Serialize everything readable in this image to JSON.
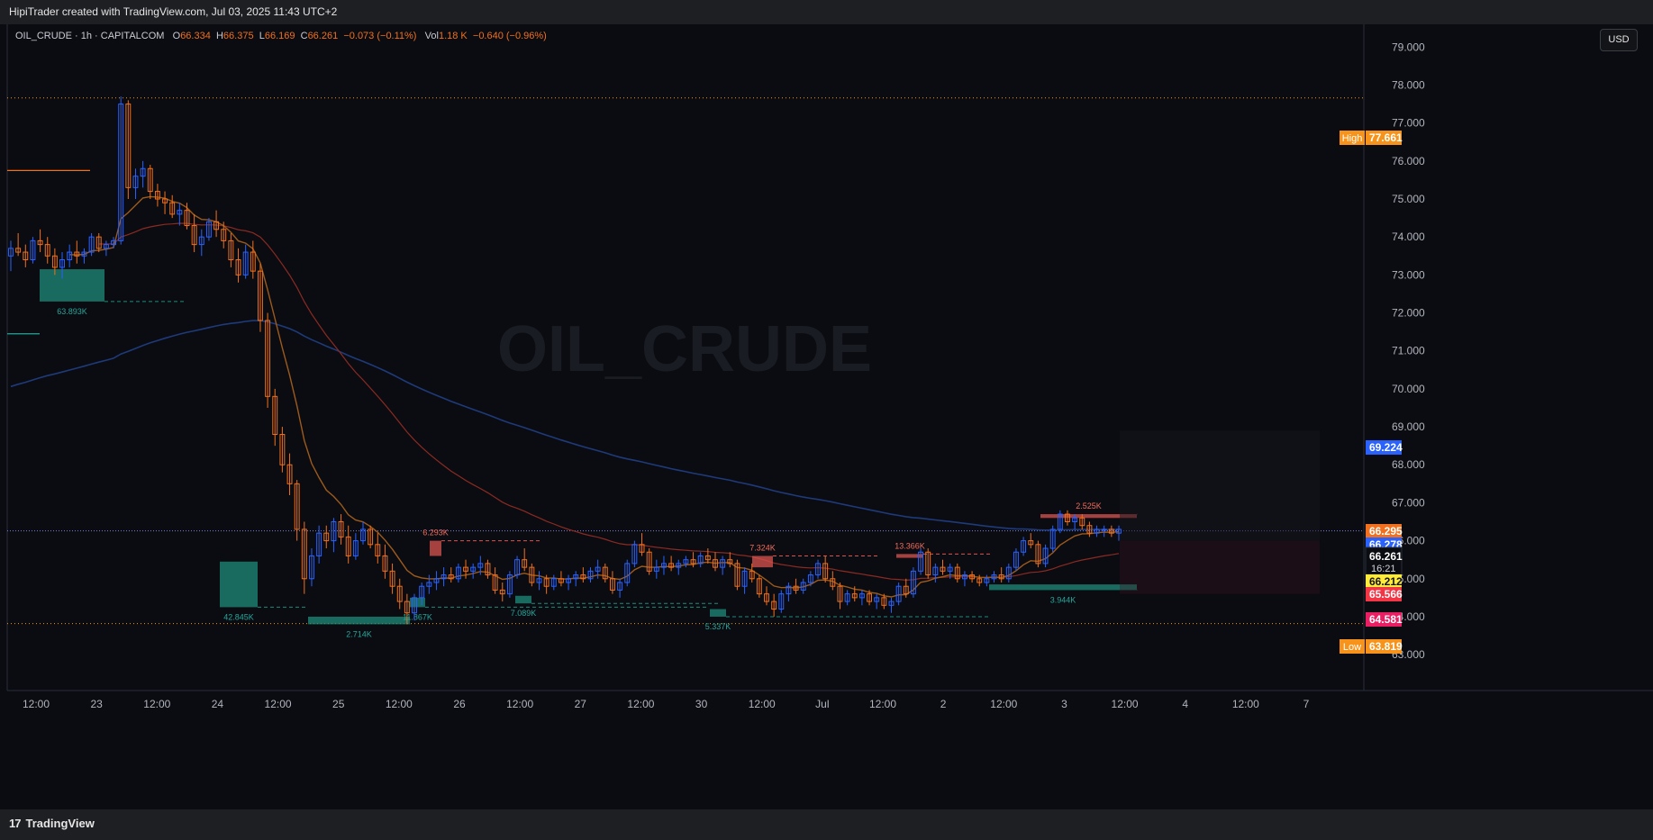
{
  "header": {
    "title": "HipiTrader created with TradingView.com, Jul 03, 2025 11:43 UTC+2"
  },
  "legend": {
    "symbol": "OIL_CRUDE · 1h · CAPITALCOM",
    "open_label": "O",
    "open": "66.334",
    "high_label": "H",
    "high": "66.375",
    "low_label": "L",
    "low": "66.169",
    "close_label": "C",
    "close": "66.261",
    "change": "−0.073 (−0.11%)",
    "vol_label": "Vol",
    "vol": "1.18 K",
    "vol_change": "−0.640 (−0.96%)"
  },
  "watermark": "OIL_CRUDE",
  "currency_button": "USD",
  "footer": {
    "brand": "TradingView",
    "logo_text": "17"
  },
  "colors": {
    "bull": "#2962ff",
    "bear": "#f0701e",
    "ema_fast": "#9c5a1c",
    "ema_mid": "#8b2a22",
    "ema_slow": "#1e3a7a",
    "demand": "#1f8a7a",
    "supply": "#d9534f",
    "high_low": "#f7931a"
  },
  "chart_data": {
    "type": "candlestick",
    "ylim": [
      62.6,
      79.6
    ],
    "y_ticks": [
      "79.000",
      "78.000",
      "77.000",
      "76.000",
      "75.000",
      "74.000",
      "73.000",
      "72.000",
      "71.000",
      "70.000",
      "69.000",
      "68.000",
      "67.000",
      "66.000",
      "65.000",
      "64.000",
      "63.000"
    ],
    "x_ticks": [
      "12:00",
      "23",
      "12:00",
      "24",
      "12:00",
      "25",
      "12:00",
      "26",
      "12:00",
      "27",
      "12:00",
      "30",
      "12:00",
      "Jul",
      "12:00",
      "2",
      "12:00",
      "3",
      "12:00",
      "4",
      "12:00",
      "7"
    ],
    "price_labels": [
      {
        "label": "High",
        "value": "77.661",
        "color": "#f7931a"
      },
      {
        "label": "",
        "value": "69.224",
        "color": "#2962ff"
      },
      {
        "label": "",
        "value": "66.295",
        "color": "#f0701e"
      },
      {
        "label": "",
        "value": "66.278",
        "color": "#2962ff"
      },
      {
        "label": "",
        "value": "66.261",
        "sub": "16:21",
        "color": "#0b0c11"
      },
      {
        "label": "",
        "value": "66.212",
        "color": "#ffeb3b"
      },
      {
        "label": "",
        "value": "65.566",
        "color": "#f23645"
      },
      {
        "label": "",
        "value": "64.581",
        "color": "#e91e63"
      },
      {
        "label": "Low",
        "value": "63.819",
        "color": "#f7931a"
      }
    ],
    "zones": [
      {
        "type": "demand",
        "label": "63.893K",
        "top": 73.15,
        "bottom": 72.3
      },
      {
        "type": "demand",
        "label": "42.845K",
        "top": 65.45,
        "bottom": 64.25
      },
      {
        "type": "demand",
        "label": "2.714K",
        "top": 64.0,
        "bottom": 63.8
      },
      {
        "type": "demand",
        "label": "11.867K",
        "top": 64.5,
        "bottom": 64.25
      },
      {
        "type": "demand",
        "label": "7.089K",
        "top": 64.55,
        "bottom": 64.35
      },
      {
        "type": "demand",
        "label": "5.337K",
        "top": 64.2,
        "bottom": 64.0
      },
      {
        "type": "demand",
        "label": "3.944K",
        "top": 64.85,
        "bottom": 64.7
      },
      {
        "type": "supply",
        "label": "6.293K",
        "top": 66.0,
        "bottom": 65.6
      },
      {
        "type": "supply",
        "label": "7.324K",
        "top": 65.6,
        "bottom": 65.3
      },
      {
        "type": "supply",
        "label": "13.366K",
        "top": 65.65,
        "bottom": 65.55
      },
      {
        "type": "supply",
        "label": "2.525K",
        "top": 66.7,
        "bottom": 66.6
      }
    ],
    "candles": [
      [
        73.5,
        73.9,
        73.1,
        73.7
      ],
      [
        73.7,
        74.1,
        73.5,
        73.6
      ],
      [
        73.6,
        73.8,
        73.2,
        73.4
      ],
      [
        73.4,
        74.0,
        73.3,
        73.9
      ],
      [
        73.9,
        74.2,
        73.6,
        73.8
      ],
      [
        73.8,
        74.0,
        73.3,
        73.5
      ],
      [
        73.5,
        73.7,
        73.0,
        73.2
      ],
      [
        73.2,
        73.6,
        72.9,
        73.4
      ],
      [
        73.4,
        73.8,
        73.2,
        73.6
      ],
      [
        73.6,
        73.9,
        73.3,
        73.5
      ],
      [
        73.5,
        73.7,
        73.3,
        73.6
      ],
      [
        73.6,
        74.1,
        73.5,
        74.0
      ],
      [
        74.0,
        74.1,
        73.6,
        73.7
      ],
      [
        73.7,
        73.9,
        73.5,
        73.8
      ],
      [
        73.8,
        74.0,
        73.7,
        73.9
      ],
      [
        73.9,
        77.7,
        73.8,
        77.5
      ],
      [
        77.5,
        77.6,
        75.0,
        75.3
      ],
      [
        75.3,
        75.8,
        75.0,
        75.6
      ],
      [
        75.6,
        76.0,
        75.3,
        75.8
      ],
      [
        75.8,
        75.9,
        75.0,
        75.2
      ],
      [
        75.2,
        75.4,
        74.8,
        75.0
      ],
      [
        75.0,
        75.2,
        74.6,
        74.9
      ],
      [
        74.9,
        75.1,
        74.5,
        74.6
      ],
      [
        74.6,
        74.9,
        74.3,
        74.7
      ],
      [
        74.7,
        74.9,
        74.2,
        74.3
      ],
      [
        74.3,
        74.6,
        73.6,
        73.8
      ],
      [
        73.8,
        74.2,
        73.5,
        74.0
      ],
      [
        74.0,
        74.5,
        73.9,
        74.4
      ],
      [
        74.4,
        74.7,
        74.0,
        74.2
      ],
      [
        74.2,
        74.4,
        73.7,
        73.9
      ],
      [
        73.9,
        74.1,
        73.2,
        73.4
      ],
      [
        73.4,
        73.7,
        72.8,
        73.0
      ],
      [
        73.0,
        73.8,
        72.9,
        73.6
      ],
      [
        73.6,
        73.9,
        72.9,
        73.1
      ],
      [
        73.1,
        73.3,
        71.5,
        71.8
      ],
      [
        71.8,
        72.0,
        69.5,
        69.8
      ],
      [
        69.8,
        70.0,
        68.5,
        68.8
      ],
      [
        68.8,
        69.0,
        67.8,
        68.0
      ],
      [
        68.0,
        68.3,
        67.2,
        67.5
      ],
      [
        67.5,
        67.6,
        66.0,
        66.3
      ],
      [
        66.3,
        66.5,
        64.6,
        65.0
      ],
      [
        65.0,
        65.8,
        64.8,
        65.6
      ],
      [
        65.6,
        66.4,
        65.4,
        66.2
      ],
      [
        66.2,
        66.4,
        65.8,
        66.0
      ],
      [
        66.0,
        66.6,
        65.7,
        66.5
      ],
      [
        66.5,
        66.7,
        65.9,
        66.1
      ],
      [
        66.1,
        66.4,
        65.4,
        65.6
      ],
      [
        65.6,
        66.2,
        65.5,
        66.0
      ],
      [
        66.0,
        66.5,
        65.9,
        66.3
      ],
      [
        66.3,
        66.4,
        65.8,
        65.9
      ],
      [
        65.9,
        66.2,
        65.4,
        65.6
      ],
      [
        65.6,
        65.9,
        65.0,
        65.2
      ],
      [
        65.2,
        65.4,
        64.6,
        64.8
      ],
      [
        64.8,
        65.0,
        64.2,
        64.4
      ],
      [
        64.4,
        64.6,
        63.8,
        64.1
      ],
      [
        64.1,
        64.6,
        63.9,
        64.5
      ],
      [
        64.5,
        64.9,
        64.3,
        64.8
      ],
      [
        64.8,
        65.1,
        64.6,
        64.9
      ],
      [
        64.9,
        65.2,
        64.7,
        65.0
      ],
      [
        65.0,
        65.3,
        64.8,
        65.1
      ],
      [
        65.1,
        65.3,
        64.9,
        65.0
      ],
      [
        65.0,
        65.4,
        64.9,
        65.3
      ],
      [
        65.3,
        65.5,
        65.0,
        65.2
      ],
      [
        65.2,
        65.4,
        65.0,
        65.3
      ],
      [
        65.3,
        65.6,
        65.1,
        65.4
      ],
      [
        65.4,
        65.5,
        65.0,
        65.1
      ],
      [
        65.1,
        65.3,
        64.6,
        64.7
      ],
      [
        64.7,
        64.9,
        64.4,
        64.6
      ],
      [
        64.6,
        65.2,
        64.5,
        65.1
      ],
      [
        65.1,
        65.6,
        65.0,
        65.5
      ],
      [
        65.5,
        65.8,
        65.2,
        65.3
      ],
      [
        65.3,
        65.4,
        64.8,
        64.9
      ],
      [
        64.9,
        65.2,
        64.7,
        65.0
      ],
      [
        65.0,
        65.1,
        64.6,
        64.8
      ],
      [
        64.8,
        65.1,
        64.7,
        65.0
      ],
      [
        65.0,
        65.2,
        64.8,
        64.9
      ],
      [
        64.9,
        65.1,
        64.7,
        65.0
      ],
      [
        65.0,
        65.2,
        64.8,
        65.1
      ],
      [
        65.1,
        65.3,
        64.9,
        65.0
      ],
      [
        65.0,
        65.3,
        64.9,
        65.2
      ],
      [
        65.2,
        65.5,
        65.0,
        65.3
      ],
      [
        65.3,
        65.4,
        64.9,
        65.0
      ],
      [
        65.0,
        65.2,
        64.6,
        64.7
      ],
      [
        64.7,
        65.0,
        64.5,
        64.9
      ],
      [
        64.9,
        65.5,
        64.8,
        65.4
      ],
      [
        65.4,
        66.0,
        65.3,
        65.9
      ],
      [
        65.9,
        66.2,
        65.6,
        65.7
      ],
      [
        65.7,
        65.8,
        65.1,
        65.2
      ],
      [
        65.2,
        65.5,
        65.0,
        65.3
      ],
      [
        65.3,
        65.6,
        65.1,
        65.4
      ],
      [
        65.4,
        65.6,
        65.2,
        65.3
      ],
      [
        65.3,
        65.5,
        65.1,
        65.4
      ],
      [
        65.4,
        65.6,
        65.3,
        65.5
      ],
      [
        65.5,
        65.7,
        65.3,
        65.4
      ],
      [
        65.4,
        65.7,
        65.3,
        65.6
      ],
      [
        65.6,
        65.8,
        65.4,
        65.5
      ],
      [
        65.5,
        65.7,
        65.2,
        65.3
      ],
      [
        65.3,
        65.6,
        65.1,
        65.5
      ],
      [
        65.5,
        65.7,
        65.3,
        65.4
      ],
      [
        65.4,
        65.5,
        64.7,
        64.8
      ],
      [
        64.8,
        65.3,
        64.6,
        65.2
      ],
      [
        65.2,
        65.4,
        64.9,
        65.0
      ],
      [
        65.0,
        65.1,
        64.5,
        64.6
      ],
      [
        64.6,
        64.8,
        64.3,
        64.4
      ],
      [
        64.4,
        64.6,
        64.0,
        64.2
      ],
      [
        64.2,
        64.7,
        64.1,
        64.6
      ],
      [
        64.6,
        64.9,
        64.4,
        64.8
      ],
      [
        64.8,
        65.0,
        64.6,
        64.7
      ],
      [
        64.7,
        65.0,
        64.6,
        64.9
      ],
      [
        64.9,
        65.2,
        64.8,
        65.1
      ],
      [
        65.1,
        65.5,
        65.0,
        65.4
      ],
      [
        65.4,
        65.6,
        64.9,
        65.0
      ],
      [
        65.0,
        65.2,
        64.7,
        64.8
      ],
      [
        64.8,
        64.9,
        64.2,
        64.4
      ],
      [
        64.4,
        64.7,
        64.3,
        64.6
      ],
      [
        64.6,
        64.8,
        64.4,
        64.5
      ],
      [
        64.5,
        64.7,
        64.3,
        64.6
      ],
      [
        64.6,
        64.7,
        64.3,
        64.4
      ],
      [
        64.4,
        64.6,
        64.2,
        64.5
      ],
      [
        64.5,
        64.6,
        64.2,
        64.3
      ],
      [
        64.3,
        64.5,
        64.1,
        64.4
      ],
      [
        64.4,
        64.9,
        64.3,
        64.8
      ],
      [
        64.8,
        65.0,
        64.5,
        64.6
      ],
      [
        64.6,
        65.3,
        64.5,
        65.2
      ],
      [
        65.2,
        65.8,
        65.1,
        65.7
      ],
      [
        65.7,
        65.8,
        65.0,
        65.1
      ],
      [
        65.1,
        65.4,
        64.9,
        65.3
      ],
      [
        65.3,
        65.5,
        65.1,
        65.2
      ],
      [
        65.2,
        65.4,
        65.0,
        65.3
      ],
      [
        65.3,
        65.4,
        64.9,
        65.0
      ],
      [
        65.0,
        65.2,
        64.8,
        65.1
      ],
      [
        65.1,
        65.2,
        64.9,
        65.0
      ],
      [
        65.0,
        65.1,
        64.8,
        64.9
      ],
      [
        64.9,
        65.1,
        64.8,
        65.0
      ],
      [
        65.0,
        65.2,
        64.9,
        65.1
      ],
      [
        65.1,
        65.3,
        64.9,
        65.0
      ],
      [
        65.0,
        65.4,
        64.9,
        65.3
      ],
      [
        65.3,
        65.8,
        65.2,
        65.7
      ],
      [
        65.7,
        66.1,
        65.6,
        66.0
      ],
      [
        66.0,
        66.2,
        65.8,
        65.9
      ],
      [
        65.9,
        66.0,
        65.3,
        65.4
      ],
      [
        65.4,
        65.9,
        65.3,
        65.8
      ],
      [
        65.8,
        66.4,
        65.7,
        66.3
      ],
      [
        66.3,
        66.8,
        66.2,
        66.7
      ],
      [
        66.7,
        66.8,
        66.4,
        66.5
      ],
      [
        66.5,
        66.7,
        66.3,
        66.6
      ],
      [
        66.6,
        66.7,
        66.3,
        66.4
      ],
      [
        66.4,
        66.5,
        66.1,
        66.2
      ],
      [
        66.2,
        66.4,
        66.1,
        66.3
      ],
      [
        66.3,
        66.4,
        66.1,
        66.3
      ],
      [
        66.3,
        66.4,
        66.1,
        66.2
      ],
      [
        66.2,
        66.4,
        66.0,
        66.3
      ]
    ]
  }
}
